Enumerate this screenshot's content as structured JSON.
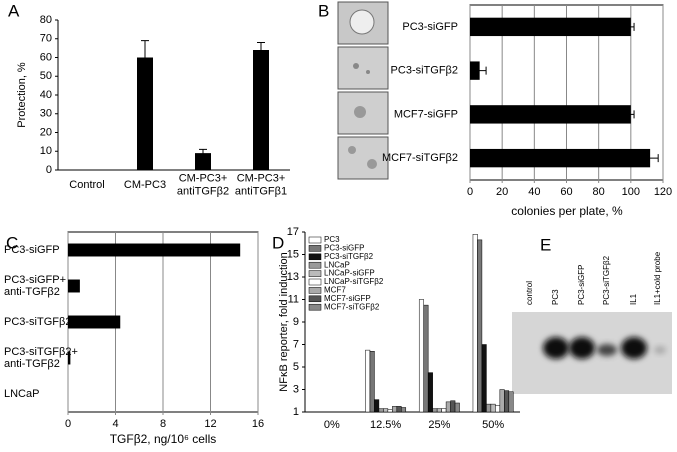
{
  "chart_data": [
    {
      "type": "bar",
      "label": "A",
      "ylabel": "Protection, %",
      "categories": [
        "Control",
        "CM-PC3",
        [
          "CM-PC3+",
          "antiTGFβ2"
        ],
        [
          "CM-PC3+",
          "antiTGFβ1"
        ]
      ],
      "values": [
        0,
        60,
        9,
        64
      ],
      "errors": [
        0,
        9,
        2,
        4
      ],
      "color": "#000000",
      "ylim": [
        0,
        80
      ],
      "yticks": [
        0,
        10,
        20,
        30,
        40,
        50,
        60,
        70,
        80
      ],
      "grid": false
    },
    {
      "type": "barh",
      "label": "B",
      "xlabel": "colonies per plate, %",
      "categories": [
        "PC3-siGFP",
        "PC3-siTGFβ2",
        "MCF7-siGFP",
        "MCF7-siTGFβ2"
      ],
      "values": [
        100,
        6,
        100,
        112
      ],
      "errors": [
        2,
        4,
        2,
        5
      ],
      "color": "#000000",
      "xlim": [
        0,
        120
      ],
      "xticks": [
        0,
        20,
        40,
        60,
        80,
        100,
        120
      ],
      "grid": true
    },
    {
      "type": "barh",
      "label": "C",
      "xlabel": "TGFβ2, ng/10⁶ cells",
      "categories": [
        "PC3-siGFP",
        [
          "PC3-siGFP+",
          "anti-TGFβ2"
        ],
        "PC3-siTGFβ2",
        [
          "PC3-siTGFβ2+",
          "anti-TGFβ2"
        ],
        "LNCaP"
      ],
      "values": [
        14.5,
        1,
        4.4,
        0.2,
        0
      ],
      "color": "#000000",
      "xlim": [
        0,
        16
      ],
      "xticks": [
        0,
        4,
        8,
        12,
        16
      ],
      "grid": true
    },
    {
      "type": "grouped-bar",
      "label": "D",
      "ylabel": "NFκB reporter, fold induction",
      "categories": [
        "0%",
        "12.5%",
        "25%",
        "50%"
      ],
      "series": [
        {
          "name": "PC3",
          "color": "#ffffff",
          "values": [
            1,
            6.5,
            11,
            16.8
          ]
        },
        {
          "name": "PC3-siGFP",
          "color": "#777777",
          "values": [
            1,
            6.4,
            10.5,
            16.3
          ]
        },
        {
          "name": "PC3-siTGFβ2",
          "color": "#111111",
          "values": [
            1,
            2.1,
            4.5,
            7
          ]
        },
        {
          "name": "LNCaP",
          "color": "#999999",
          "values": [
            1,
            1.3,
            1.3,
            1.7
          ]
        },
        {
          "name": "LNCaP-siGFP",
          "color": "#bbbbbb",
          "values": [
            1,
            1.3,
            1.3,
            1.7
          ]
        },
        {
          "name": "LNCaP-siTGFβ2",
          "color": "#ffffff",
          "values": [
            1,
            1.2,
            1.3,
            1.6
          ]
        },
        {
          "name": "MCF7",
          "color": "#aaaaaa",
          "values": [
            1,
            1.5,
            1.9,
            3
          ]
        },
        {
          "name": "MCF7-siGFP",
          "color": "#555555",
          "values": [
            1,
            1.5,
            2,
            2.9
          ]
        },
        {
          "name": "MCF7-siTGFβ2",
          "color": "#888888",
          "values": [
            1,
            1.4,
            1.8,
            2.8
          ]
        }
      ],
      "ylim": [
        1,
        17
      ],
      "yticks": [
        1,
        3,
        5,
        7,
        9,
        11,
        13,
        15,
        17
      ],
      "grid": false
    }
  ],
  "gel": {
    "label": "E",
    "lanes": [
      "control",
      "PC3",
      "PC3-siGFP",
      "PC3-siTGFβ2",
      "IL1",
      "IL1+cold probe"
    ]
  }
}
